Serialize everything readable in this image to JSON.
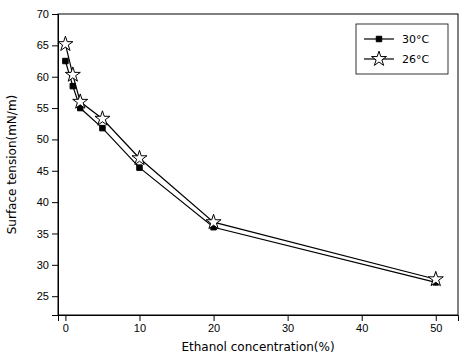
{
  "chart_data": {
    "type": "line",
    "xlabel": "Ethanol concentration(%)",
    "ylabel": "Surface tension(mN/m)",
    "x": [
      0,
      1,
      2,
      5,
      10,
      20,
      50
    ],
    "series": [
      {
        "name": "30°C",
        "color": "#000000",
        "marker": "square",
        "values": [
          62.5,
          58.5,
          55.0,
          51.8,
          45.5,
          36.0,
          27.2
        ]
      },
      {
        "name": "26°C",
        "color": "#000000",
        "marker": "star",
        "values": [
          65.2,
          60.3,
          56.0,
          53.3,
          47.0,
          36.8,
          27.7
        ]
      }
    ],
    "xlim": [
      -1,
      53
    ],
    "ylim": [
      22,
      70
    ],
    "xticks": [
      0,
      10,
      20,
      30,
      40,
      50
    ],
    "yticks": [
      25,
      30,
      35,
      40,
      45,
      50,
      55,
      60,
      65,
      70
    ],
    "grid": false,
    "legend": "upper right"
  }
}
